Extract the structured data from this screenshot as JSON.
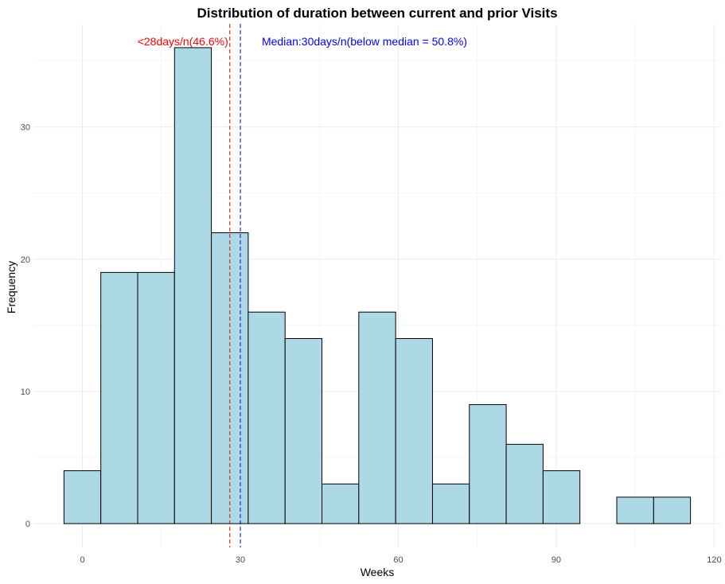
{
  "chart_data": {
    "type": "bar",
    "title": "Distribution of  duration between current and prior Visits",
    "xlabel": "Weeks",
    "ylabel": "Frequency",
    "bin_width": 7,
    "bins": [
      {
        "start": -3.5,
        "end": 3.5,
        "count": 4
      },
      {
        "start": 3.5,
        "end": 10.5,
        "count": 19
      },
      {
        "start": 10.5,
        "end": 17.5,
        "count": 19
      },
      {
        "start": 17.5,
        "end": 24.5,
        "count": 36
      },
      {
        "start": 24.5,
        "end": 31.5,
        "count": 22
      },
      {
        "start": 31.5,
        "end": 38.5,
        "count": 16
      },
      {
        "start": 38.5,
        "end": 45.5,
        "count": 14
      },
      {
        "start": 45.5,
        "end": 52.5,
        "count": 3
      },
      {
        "start": 52.5,
        "end": 59.5,
        "count": 16
      },
      {
        "start": 59.5,
        "end": 66.5,
        "count": 14
      },
      {
        "start": 66.5,
        "end": 73.5,
        "count": 3
      },
      {
        "start": 73.5,
        "end": 80.5,
        "count": 9
      },
      {
        "start": 80.5,
        "end": 87.5,
        "count": 6
      },
      {
        "start": 87.5,
        "end": 94.5,
        "count": 4
      },
      {
        "start": 94.5,
        "end": 101.5,
        "count": 0
      },
      {
        "start": 101.5,
        "end": 108.5,
        "count": 2
      },
      {
        "start": 108.5,
        "end": 115.5,
        "count": 2
      }
    ],
    "xlim": [
      -9.3,
      121.3
    ],
    "ylim": [
      -1.8,
      37.8
    ],
    "xticks": [
      0,
      30,
      60,
      90,
      120
    ],
    "yticks": [
      0,
      10,
      20,
      30
    ],
    "bar_fill": "#add8e6",
    "bar_stroke": "#000000",
    "grid": true,
    "vlines": [
      {
        "x": 28,
        "color": "#ff0000",
        "style": "dashed",
        "label": "<28days/n(46.6%)"
      },
      {
        "x": 30,
        "color": "#0000ff",
        "style": "dashed",
        "label": "Median:30days/n(below median = 50.8%)"
      }
    ]
  }
}
